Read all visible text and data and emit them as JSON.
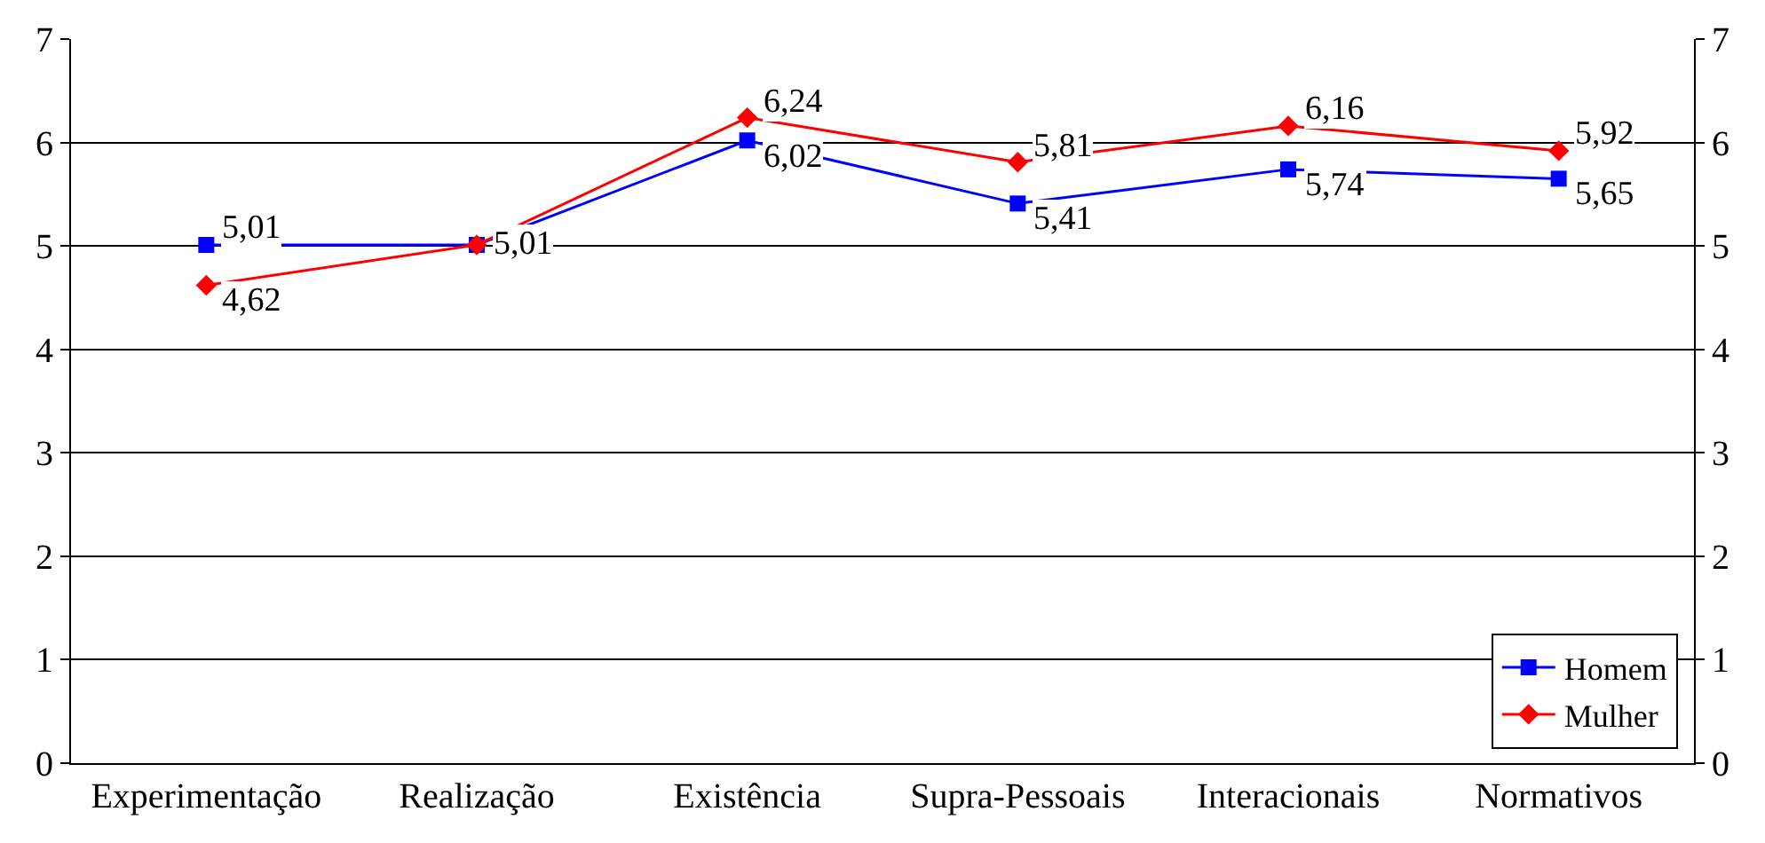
{
  "chart_data": {
    "type": "line",
    "categories": [
      "Experimentação",
      "Realização",
      "Existência",
      "Supra-Pessoais",
      "Interacionais",
      "Normativos"
    ],
    "series": [
      {
        "name": "Homem",
        "color": "#0000ff",
        "marker": "square",
        "values": [
          5.01,
          5.01,
          6.02,
          5.41,
          5.74,
          5.65
        ],
        "value_labels": [
          "5,01",
          "5,01",
          "6,02",
          "5,41",
          "5,74",
          "5,65"
        ]
      },
      {
        "name": "Mulher",
        "color": "#ff0000",
        "marker": "diamond",
        "values": [
          4.62,
          5.01,
          6.24,
          5.81,
          6.16,
          5.92
        ],
        "value_labels": [
          "4,62",
          null,
          "6,24",
          "5,81",
          "6,16",
          "5,92"
        ]
      }
    ],
    "ylim": [
      0,
      7
    ],
    "yticks": [
      0,
      1,
      2,
      3,
      4,
      5,
      6,
      7
    ],
    "y2lim": [
      0,
      7
    ],
    "y2ticks": [
      0,
      1,
      2,
      3,
      4,
      5,
      6,
      7
    ],
    "grid": "y",
    "legend": "bottom right",
    "line_style": "solid"
  }
}
